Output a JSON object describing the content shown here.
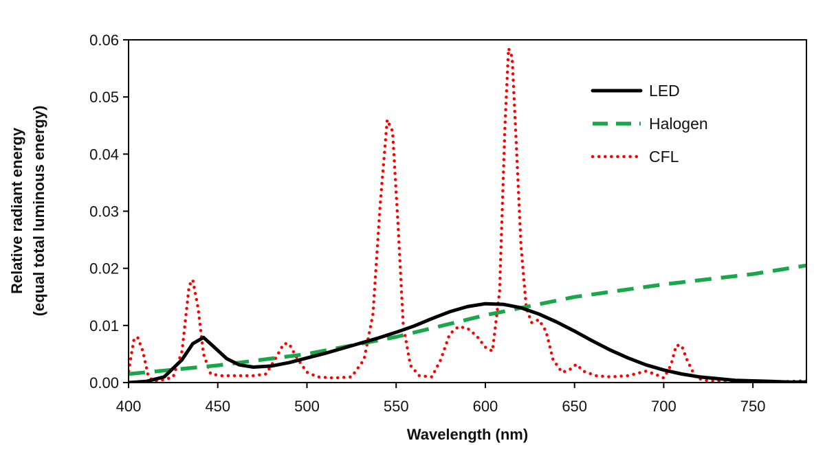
{
  "chart_data": {
    "type": "line",
    "xlabel": "Wavelength (nm)",
    "ylabel_line1": "Relative radiant energy",
    "ylabel_line2": "(equal total luminous energy)",
    "xlim": [
      400,
      780
    ],
    "ylim": [
      0,
      0.06
    ],
    "x_ticks": [
      400,
      450,
      500,
      550,
      600,
      650,
      700,
      750
    ],
    "x_tick_labels": [
      "400",
      "450",
      "500",
      "550",
      "600",
      "650",
      "700",
      "750"
    ],
    "y_ticks": [
      0,
      0.01,
      0.02,
      0.03,
      0.04,
      0.05,
      0.06
    ],
    "y_tick_labels": [
      "0.00",
      "0.01",
      "0.02",
      "0.03",
      "0.04",
      "0.05",
      "0.06"
    ],
    "legend_position": "top-right",
    "series": [
      {
        "name": "LED",
        "color": "#000000",
        "style": "solid",
        "points": [
          [
            400,
            0.0
          ],
          [
            410,
            0.0002
          ],
          [
            420,
            0.001
          ],
          [
            430,
            0.004
          ],
          [
            436,
            0.0068
          ],
          [
            442,
            0.0079
          ],
          [
            448,
            0.0062
          ],
          [
            455,
            0.0042
          ],
          [
            462,
            0.0031
          ],
          [
            470,
            0.0027
          ],
          [
            480,
            0.0029
          ],
          [
            490,
            0.0035
          ],
          [
            500,
            0.0043
          ],
          [
            510,
            0.0051
          ],
          [
            520,
            0.006
          ],
          [
            530,
            0.0069
          ],
          [
            540,
            0.0078
          ],
          [
            550,
            0.0088
          ],
          [
            560,
            0.0099
          ],
          [
            570,
            0.0112
          ],
          [
            580,
            0.0124
          ],
          [
            590,
            0.0133
          ],
          [
            600,
            0.0138
          ],
          [
            610,
            0.0137
          ],
          [
            620,
            0.0131
          ],
          [
            630,
            0.012
          ],
          [
            640,
            0.0106
          ],
          [
            650,
            0.009
          ],
          [
            660,
            0.0073
          ],
          [
            670,
            0.0057
          ],
          [
            680,
            0.0043
          ],
          [
            690,
            0.0031
          ],
          [
            700,
            0.0022
          ],
          [
            710,
            0.0015
          ],
          [
            720,
            0.001
          ],
          [
            730,
            0.0007
          ],
          [
            740,
            0.0004
          ],
          [
            750,
            0.0003
          ],
          [
            760,
            0.0002
          ],
          [
            770,
            0.0001
          ],
          [
            780,
            0.0001
          ]
        ]
      },
      {
        "name": "Halogen",
        "color": "#1aa64a",
        "style": "dashed",
        "points": [
          [
            400,
            0.0015
          ],
          [
            450,
            0.003
          ],
          [
            500,
            0.005
          ],
          [
            550,
            0.008
          ],
          [
            600,
            0.0118
          ],
          [
            650,
            0.015
          ],
          [
            700,
            0.0172
          ],
          [
            750,
            0.019
          ],
          [
            780,
            0.0205
          ]
        ]
      },
      {
        "name": "CFL",
        "color": "#ff0000",
        "style": "dotted",
        "points": [
          [
            400,
            0.002
          ],
          [
            403,
            0.0075
          ],
          [
            405,
            0.008
          ],
          [
            408,
            0.0055
          ],
          [
            411,
            0.0012
          ],
          [
            414,
            0.0002
          ],
          [
            420,
            0.0005
          ],
          [
            425,
            0.001
          ],
          [
            430,
            0.0055
          ],
          [
            434,
            0.017
          ],
          [
            436,
            0.018
          ],
          [
            439,
            0.013
          ],
          [
            442,
            0.005
          ],
          [
            446,
            0.0015
          ],
          [
            452,
            0.0012
          ],
          [
            460,
            0.0012
          ],
          [
            470,
            0.0012
          ],
          [
            477,
            0.0015
          ],
          [
            482,
            0.004
          ],
          [
            487,
            0.0068
          ],
          [
            490,
            0.0068
          ],
          [
            494,
            0.0045
          ],
          [
            500,
            0.0018
          ],
          [
            506,
            0.001
          ],
          [
            515,
            0.0008
          ],
          [
            525,
            0.001
          ],
          [
            532,
            0.004
          ],
          [
            537,
            0.012
          ],
          [
            541,
            0.031
          ],
          [
            545,
            0.046
          ],
          [
            548,
            0.044
          ],
          [
            551,
            0.028
          ],
          [
            554,
            0.01
          ],
          [
            558,
            0.003
          ],
          [
            563,
            0.0012
          ],
          [
            570,
            0.001
          ],
          [
            575,
            0.004
          ],
          [
            580,
            0.0085
          ],
          [
            585,
            0.0098
          ],
          [
            590,
            0.0095
          ],
          [
            595,
            0.0082
          ],
          [
            600,
            0.0062
          ],
          [
            604,
            0.0055
          ],
          [
            608,
            0.016
          ],
          [
            611,
            0.045
          ],
          [
            613,
            0.0585
          ],
          [
            615,
            0.057
          ],
          [
            617,
            0.044
          ],
          [
            620,
            0.024
          ],
          [
            623,
            0.013
          ],
          [
            626,
            0.0105
          ],
          [
            630,
            0.011
          ],
          [
            634,
            0.009
          ],
          [
            638,
            0.004
          ],
          [
            643,
            0.0018
          ],
          [
            647,
            0.0022
          ],
          [
            651,
            0.0032
          ],
          [
            655,
            0.002
          ],
          [
            662,
            0.0012
          ],
          [
            670,
            0.001
          ],
          [
            680,
            0.0012
          ],
          [
            690,
            0.002
          ],
          [
            695,
            0.0015
          ],
          [
            700,
            0.0008
          ],
          [
            704,
            0.003
          ],
          [
            707,
            0.0065
          ],
          [
            710,
            0.0065
          ],
          [
            713,
            0.004
          ],
          [
            718,
            0.0008
          ],
          [
            725,
            0.0003
          ],
          [
            740,
            0.0001
          ],
          [
            760,
            0.0001
          ],
          [
            780,
            0.0003
          ]
        ]
      }
    ]
  }
}
